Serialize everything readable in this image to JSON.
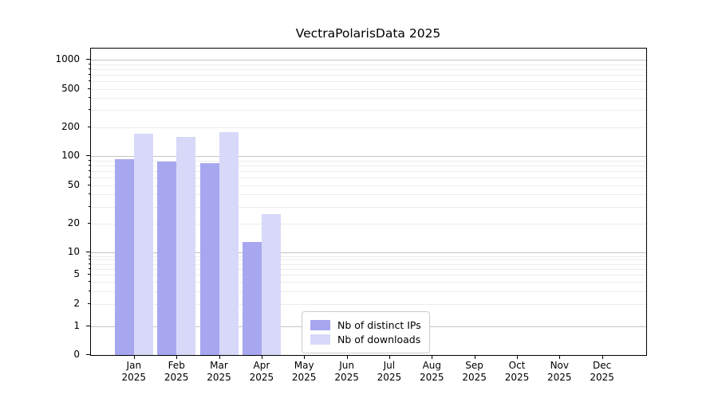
{
  "chart_data": {
    "type": "bar",
    "title": "VectraPolarisData 2025",
    "categories": [
      "Jan 2025",
      "Feb 2025",
      "Mar 2025",
      "Apr 2025",
      "May 2025",
      "Jun 2025",
      "Jul 2025",
      "Aug 2025",
      "Sep 2025",
      "Oct 2025",
      "Nov 2025",
      "Dec 2025"
    ],
    "series": [
      {
        "name": "Nb of distinct IPs",
        "color": "#a7a7f0",
        "values": [
          93,
          88,
          85,
          13,
          0,
          0,
          0,
          0,
          0,
          0,
          0,
          0
        ]
      },
      {
        "name": "Nb of downloads",
        "color": "#d8d8f9",
        "values": [
          170,
          157,
          178,
          25,
          0,
          0,
          0,
          0,
          0,
          0,
          0,
          0
        ]
      }
    ],
    "xlabel": "",
    "ylabel": "",
    "yscale": "symlog",
    "y_tick_labels": [
      "0",
      "1",
      "2",
      "5",
      "10",
      "20",
      "50",
      "100",
      "200",
      "500",
      "1000"
    ],
    "ylim": [
      0,
      1300
    ],
    "grid": "horizontal",
    "legend": {
      "position": "lower-center",
      "border": "#cccccc"
    }
  }
}
